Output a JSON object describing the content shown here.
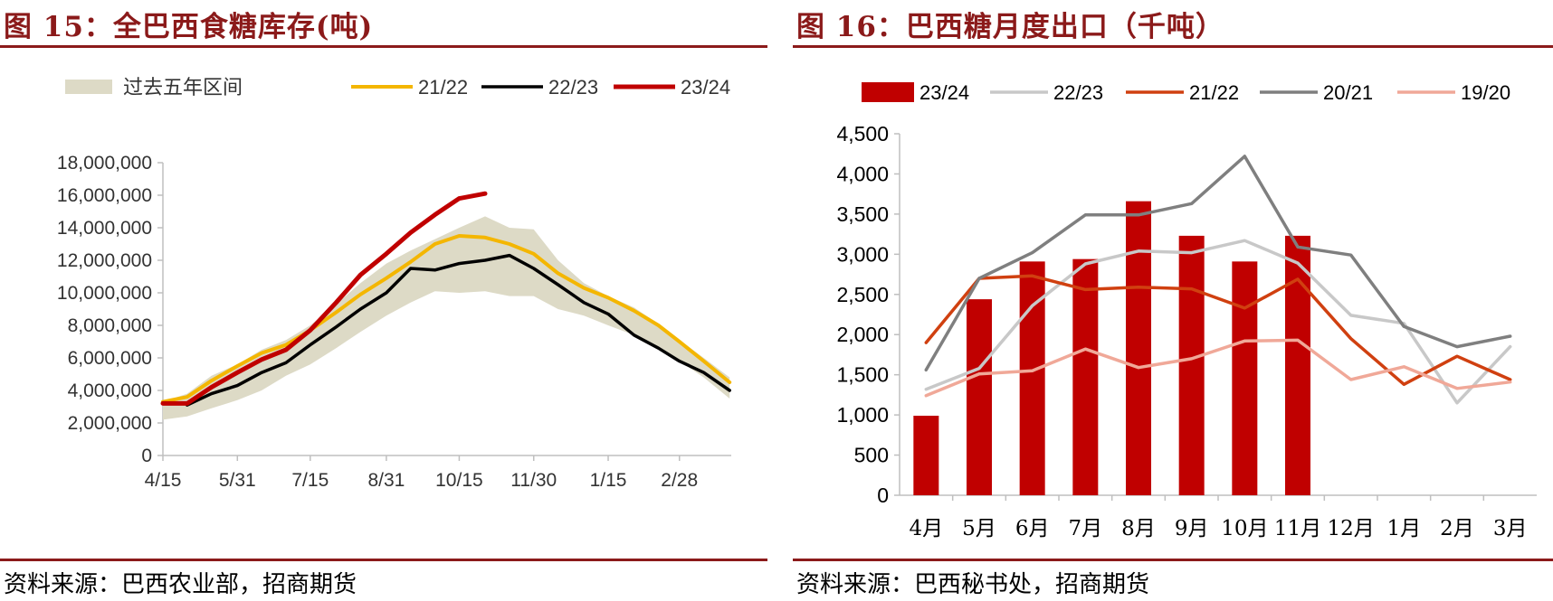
{
  "figures": [
    {
      "title": "图 15：全巴西食糖库存(吨)",
      "source": "资料来源：巴西农业部，招商期货"
    },
    {
      "title": "图 16：巴西糖月度出口（千吨）",
      "source": "资料来源：巴西秘书处，招商期货"
    }
  ],
  "colors": {
    "title_red": "#8b1a1a",
    "range_band": "#dddac6",
    "s2122_left": "#f4b600",
    "s2223_left": "#000000",
    "s2324_left": "#c00000",
    "bar_2324": "#c00000",
    "s2223_right": "#c8c8c8",
    "s2122_right": "#d04010",
    "s2021_right": "#7f7f7f",
    "s1920_right": "#f0a898"
  },
  "chart_data": [
    {
      "type": "line",
      "title": "全巴西食糖库存(吨)",
      "x_tick_labels": [
        "4/15",
        "5/31",
        "7/15",
        "8/31",
        "10/15",
        "11/30",
        "1/15",
        "2/28"
      ],
      "x_tick_dates": [
        "04-15",
        "05-31",
        "07-15",
        "08-31",
        "10-15",
        "11-30",
        "01-15",
        "02-28"
      ],
      "ylim": [
        0,
        18000000
      ],
      "y_ticks": [
        "0",
        "2,000,000",
        "4,000,000",
        "6,000,000",
        "8,000,000",
        "10,000,000",
        "12,000,000",
        "14,000,000",
        "16,000,000",
        "18,000,000"
      ],
      "y_tick_values": [
        0,
        2000000,
        4000000,
        6000000,
        8000000,
        10000000,
        12000000,
        14000000,
        16000000,
        18000000
      ],
      "legend_position": "top",
      "range_band": {
        "name": "过去五年区间",
        "x": [
          "04-15",
          "04-30",
          "05-15",
          "05-31",
          "06-15",
          "06-30",
          "07-15",
          "07-31",
          "08-15",
          "08-31",
          "09-15",
          "09-30",
          "10-15",
          "10-31",
          "11-15",
          "11-30",
          "12-15",
          "12-31",
          "01-15",
          "01-31",
          "02-15",
          "02-28",
          "03-15",
          "03-31"
        ],
        "upper": [
          3300000,
          3800000,
          4900000,
          5600000,
          6500000,
          7100000,
          8000000,
          9300000,
          10600000,
          11800000,
          12600000,
          13300000,
          14000000,
          14700000,
          14000000,
          13900000,
          12000000,
          10600000,
          9800000,
          9100000,
          8100000,
          7100000,
          6000000,
          4800000
        ],
        "lower": [
          2200000,
          2400000,
          2900000,
          3400000,
          4000000,
          4900000,
          5600000,
          6600000,
          7600000,
          8600000,
          9400000,
          10100000,
          10000000,
          10100000,
          9800000,
          9800000,
          9000000,
          8600000,
          8000000,
          7400000,
          6700000,
          5800000,
          4800000,
          3500000
        ]
      },
      "series": [
        {
          "name": "21/22",
          "x": [
            "04-15",
            "04-30",
            "05-15",
            "05-31",
            "06-15",
            "06-30",
            "07-15",
            "07-31",
            "08-15",
            "08-31",
            "09-15",
            "09-30",
            "10-15",
            "10-31",
            "11-15",
            "11-30",
            "12-15",
            "12-31",
            "01-15",
            "01-31",
            "02-15",
            "02-28",
            "03-15",
            "03-31"
          ],
          "values": [
            3300000,
            3600000,
            4600000,
            5500000,
            6300000,
            6800000,
            7700000,
            8800000,
            9900000,
            10900000,
            11900000,
            13000000,
            13500000,
            13400000,
            13000000,
            12400000,
            11200000,
            10300000,
            9700000,
            8900000,
            8000000,
            7000000,
            5800000,
            4500000
          ]
        },
        {
          "name": "22/23",
          "x": [
            "04-30",
            "05-15",
            "05-31",
            "06-15",
            "06-30",
            "07-15",
            "07-31",
            "08-15",
            "08-31",
            "09-15",
            "09-30",
            "10-15",
            "10-31",
            "11-15",
            "11-30",
            "12-15",
            "12-31",
            "01-15",
            "01-31",
            "02-15",
            "02-28",
            "03-15",
            "03-31"
          ],
          "values": [
            3100000,
            3800000,
            4300000,
            5100000,
            5700000,
            6800000,
            7900000,
            9000000,
            10000000,
            11500000,
            11400000,
            11800000,
            12000000,
            12300000,
            11500000,
            10500000,
            9400000,
            8700000,
            7400000,
            6600000,
            5800000,
            5100000,
            4000000
          ]
        },
        {
          "name": "23/24",
          "x": [
            "04-15",
            "04-30",
            "05-15",
            "05-31",
            "06-15",
            "06-30",
            "07-15",
            "07-31",
            "08-15",
            "08-31",
            "09-15",
            "09-30",
            "10-15",
            "10-31"
          ],
          "values": [
            3200000,
            3200000,
            4200000,
            5100000,
            5900000,
            6500000,
            7700000,
            9400000,
            11100000,
            12400000,
            13700000,
            14800000,
            15800000,
            16100000
          ]
        }
      ]
    },
    {
      "type": "bar",
      "title": "巴西糖月度出口（千吨）",
      "categories": [
        "4月",
        "5月",
        "6月",
        "7月",
        "8月",
        "9月",
        "10月",
        "11月",
        "12月",
        "1月",
        "2月",
        "3月"
      ],
      "ylim": [
        0,
        4500
      ],
      "y_ticks": [
        "0",
        "500",
        "1,000",
        "1,500",
        "2,000",
        "2,500",
        "3,000",
        "3,500",
        "4,000",
        "4,500"
      ],
      "y_tick_values": [
        0,
        500,
        1000,
        1500,
        2000,
        2500,
        3000,
        3500,
        4000,
        4500
      ],
      "legend_position": "top",
      "bar_series": {
        "name": "23/24",
        "values": [
          990,
          2440,
          2910,
          2940,
          3660,
          3230,
          2910,
          3230
        ]
      },
      "series": [
        {
          "name": "22/23",
          "values": [
            1320,
            1580,
            2360,
            2880,
            3040,
            3020,
            3170,
            2890,
            2240,
            2140,
            1150,
            1850
          ]
        },
        {
          "name": "21/22",
          "values": [
            1900,
            2700,
            2730,
            2560,
            2590,
            2570,
            2330,
            2690,
            1950,
            1380,
            1730,
            1440
          ]
        },
        {
          "name": "20/21",
          "values": [
            1560,
            2700,
            3020,
            3490,
            3490,
            3630,
            4220,
            3090,
            2990,
            2100,
            1850,
            1980
          ]
        },
        {
          "name": "19/20",
          "values": [
            1240,
            1510,
            1550,
            1820,
            1590,
            1700,
            1920,
            1930,
            1440,
            1600,
            1330,
            1410
          ]
        }
      ]
    }
  ]
}
